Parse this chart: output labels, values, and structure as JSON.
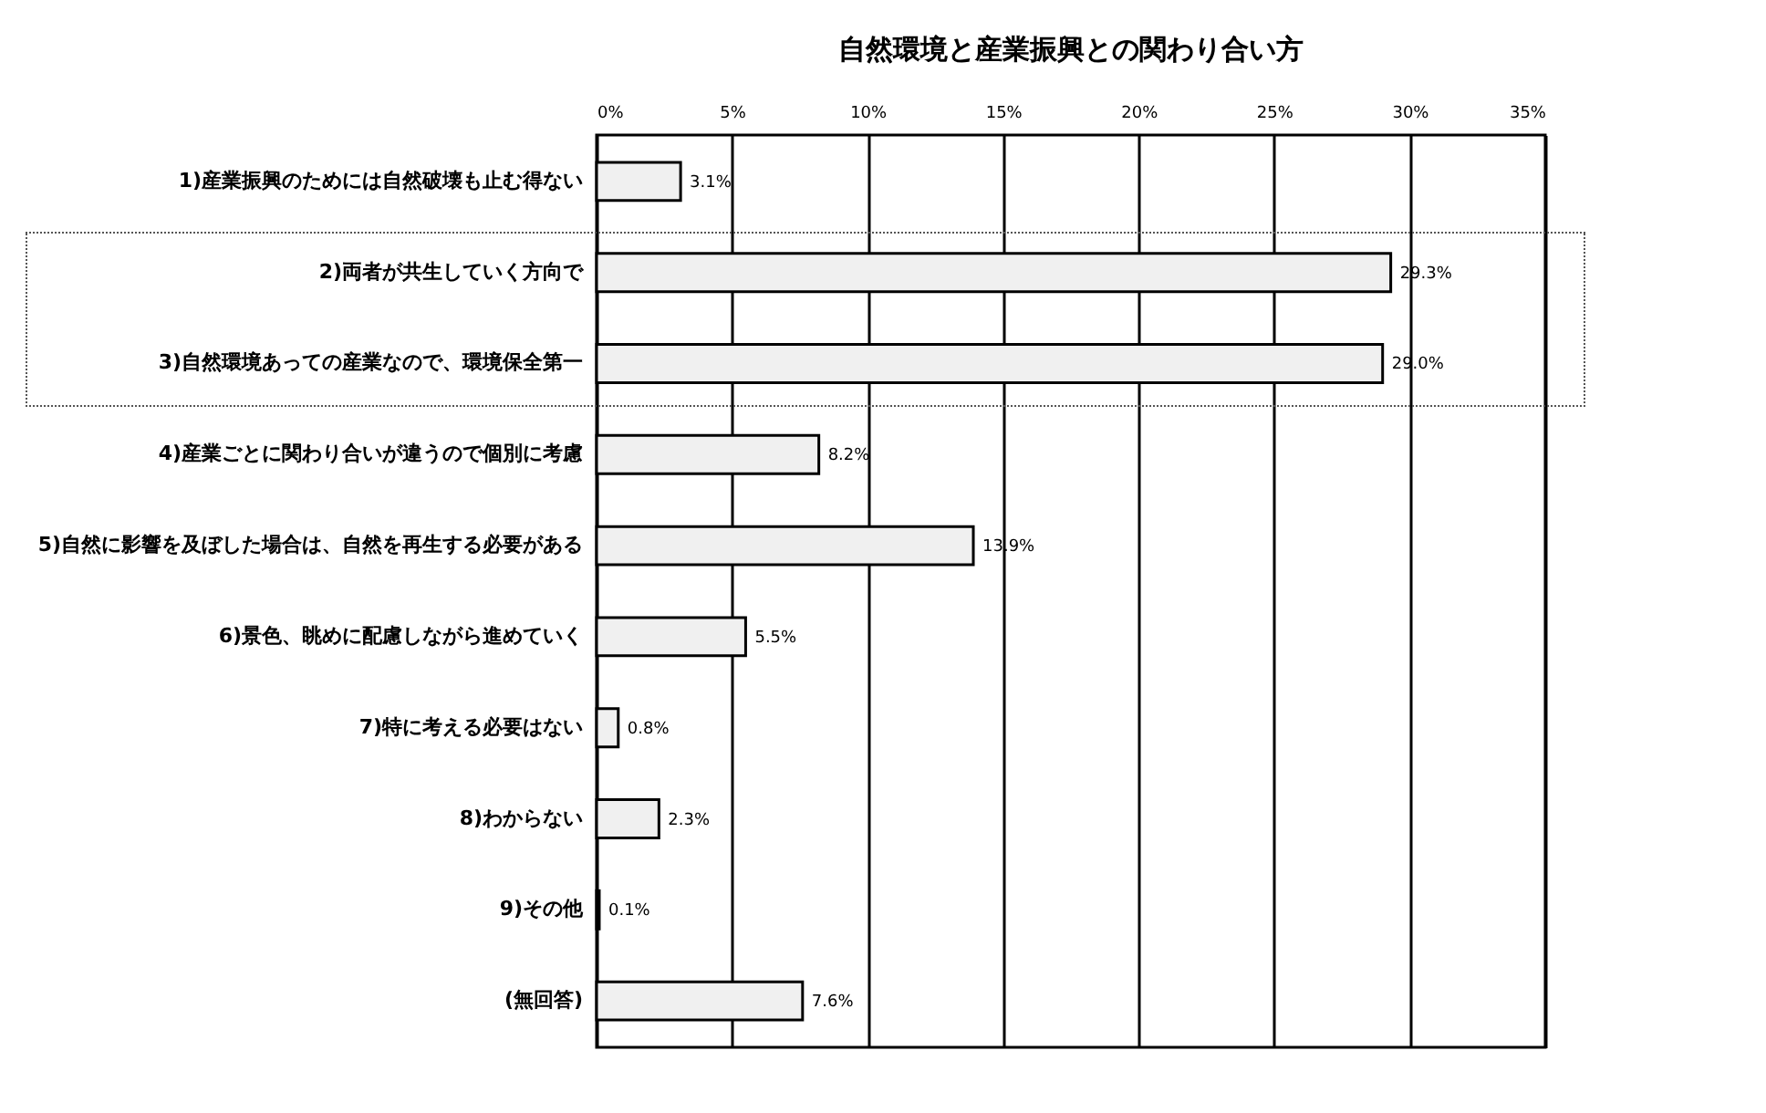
{
  "chart_data": {
    "type": "bar",
    "orientation": "horizontal",
    "title": "自然環境と産業振興との関わり合い方",
    "categories": [
      "1)産業振興のためには自然破壊も止む得ない",
      "2)両者が共生していく方向で",
      "3)自然環境あっての産業なので、環境保全第一",
      "4)産業ごとに関わり合いが違うので個別に考慮",
      "5)自然に影響を及ぼした場合は、自然を再生する必要がある",
      "6)景色、眺めに配慮しながら進めていく",
      "7)特に考える必要はない",
      "8)わからない",
      "9)その他",
      "(無回答)"
    ],
    "values": [
      3.1,
      29.3,
      29.0,
      8.2,
      13.9,
      5.5,
      0.8,
      2.3,
      0.1,
      7.6
    ],
    "value_labels": [
      "3.1%",
      "29.3%",
      "29.0%",
      "8.2%",
      "13.9%",
      "5.5%",
      "0.8%",
      "2.3%",
      "0.1%",
      "7.6%"
    ],
    "color": "#f0f0f0",
    "xlim": [
      0,
      35
    ],
    "xticks": [
      {
        "value": 0,
        "label": "0%"
      },
      {
        "value": 5,
        "label": "5%"
      },
      {
        "value": 10,
        "label": "10%"
      },
      {
        "value": 15,
        "label": "15%"
      },
      {
        "value": 20,
        "label": "20%"
      },
      {
        "value": 25,
        "label": "25%"
      },
      {
        "value": 30,
        "label": "30%"
      },
      {
        "value": 35,
        "label": "35%"
      }
    ],
    "grid": "x"
  }
}
